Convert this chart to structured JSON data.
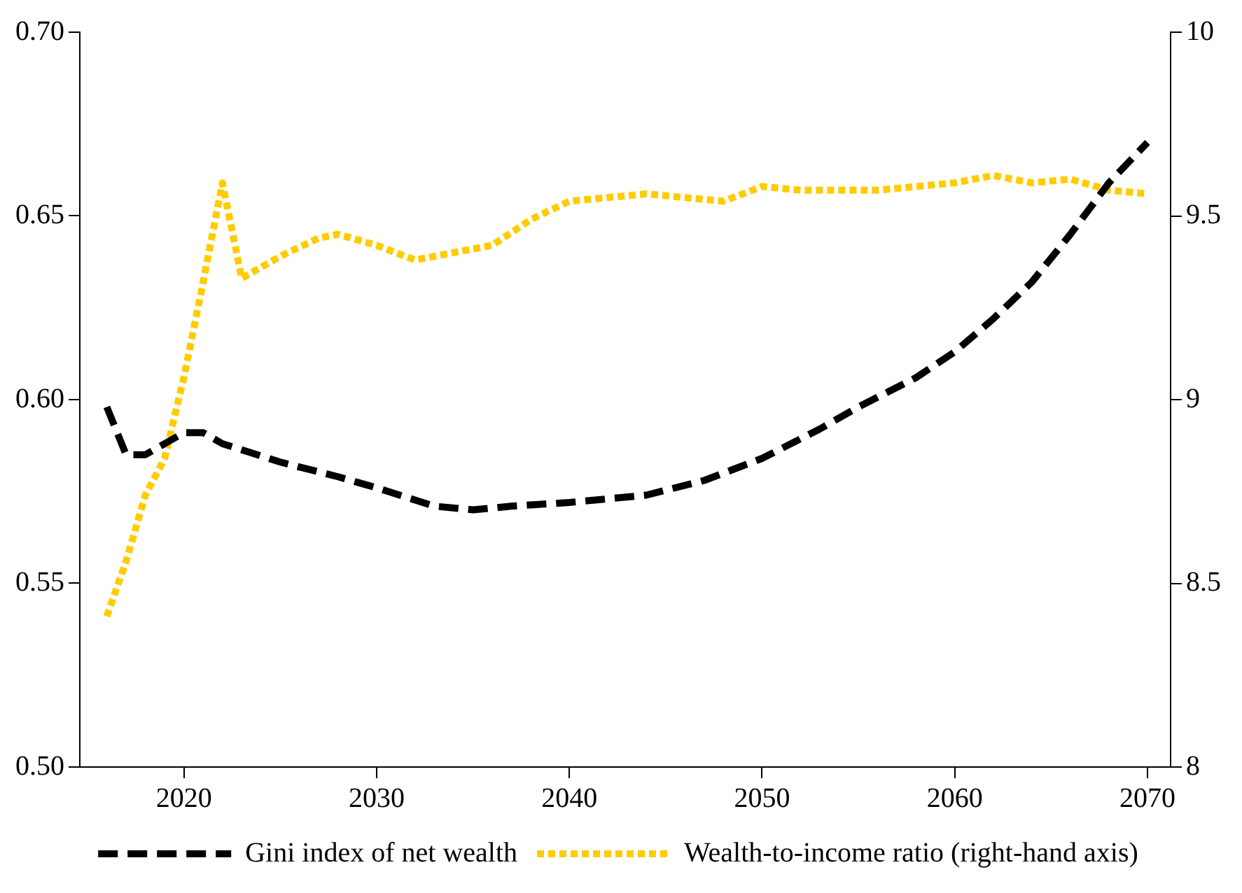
{
  "chart_data": {
    "type": "line",
    "x": [
      2016,
      2017,
      2018,
      2019,
      2020,
      2021,
      2022,
      2025,
      2028,
      2030,
      2033,
      2035,
      2037,
      2040,
      2044,
      2047,
      2050,
      2053,
      2055,
      2058,
      2060,
      2062,
      2064,
      2066,
      2068,
      2070
    ],
    "series": [
      {
        "name": "Gini index of net wealth",
        "color": "#000000",
        "line_style": "dashed",
        "values": [
          0.598,
          0.585,
          0.585,
          0.588,
          0.591,
          0.591,
          0.588,
          0.583,
          0.579,
          0.576,
          0.571,
          0.57,
          0.571,
          0.572,
          0.574,
          0.578,
          0.584,
          0.592,
          0.598,
          0.606,
          0.613,
          0.622,
          0.632,
          0.645,
          0.659,
          0.67
        ]
      },
      {
        "name": "Wealth-to-income ratio (right-hand axis)",
        "color": "#ffcc00",
        "line_style": "dotted",
        "axis": "y2",
        "x": [
          2016,
          2017,
          2018,
          2019,
          2020,
          2021,
          2022,
          2023,
          2024,
          2025,
          2027,
          2028,
          2030,
          2032,
          2034,
          2036,
          2038,
          2040,
          2042,
          2044,
          2046,
          2048,
          2050,
          2052,
          2054,
          2056,
          2058,
          2060,
          2062,
          2064,
          2066,
          2068,
          2070
        ],
        "values": [
          8.41,
          8.56,
          8.74,
          8.84,
          9.06,
          9.32,
          9.59,
          9.33,
          9.36,
          9.39,
          9.44,
          9.45,
          9.42,
          9.38,
          9.4,
          9.42,
          9.49,
          9.54,
          9.55,
          9.56,
          9.55,
          9.54,
          9.58,
          9.57,
          9.57,
          9.57,
          9.58,
          9.59,
          9.61,
          9.59,
          9.6,
          9.57,
          9.56
        ]
      }
    ],
    "xlim": [
      2014.6,
      2071.2
    ],
    "xticks": [
      2020,
      2030,
      2040,
      2050,
      2060,
      2070
    ],
    "ylim": [
      0.5,
      0.7
    ],
    "yticks": [
      {
        "value": 0.5,
        "label": "0.50"
      },
      {
        "value": 0.55,
        "label": "0.55"
      },
      {
        "value": 0.6,
        "label": "0.60"
      },
      {
        "value": 0.65,
        "label": "0.65"
      },
      {
        "value": 0.7,
        "label": "0.70"
      }
    ],
    "y2lim": [
      8,
      10
    ],
    "y2ticks": [
      8,
      8.5,
      9,
      9.5,
      10
    ],
    "grid": false,
    "legend": "bottom",
    "marker": "none"
  }
}
